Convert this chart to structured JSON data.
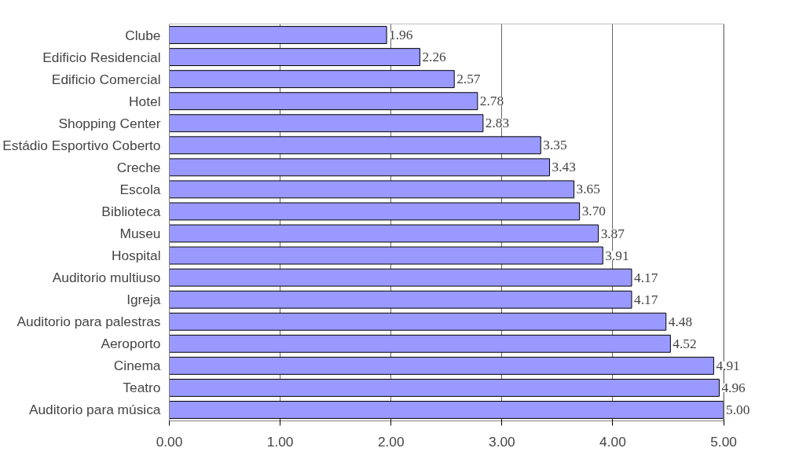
{
  "chart_data": {
    "type": "bar",
    "orientation": "horizontal",
    "categories": [
      "Clube",
      "Edificio Residencial",
      "Edificio Comercial",
      "Hotel",
      "Shopping Center",
      "Estádio Esportivo Coberto",
      "Creche",
      "Escola",
      "Biblioteca",
      "Museu",
      "Hospital",
      "Auditorio multiuso",
      "Igreja",
      "Auditorio para palestras",
      "Aeroporto",
      "Cinema",
      "Teatro",
      "Auditorio para música"
    ],
    "values": [
      1.96,
      2.26,
      2.57,
      2.78,
      2.83,
      3.35,
      3.43,
      3.65,
      3.7,
      3.87,
      3.91,
      4.17,
      4.17,
      4.48,
      4.52,
      4.91,
      4.96,
      5.0
    ],
    "value_labels": [
      "1.96",
      "2.26",
      "2.57",
      "2.78",
      "2.83",
      "3.35",
      "3.43",
      "3.65",
      "3.70",
      "3.87",
      "3.91",
      "4.17",
      "4.17",
      "4.48",
      "4.52",
      "4.91",
      "4.96",
      "5.00"
    ],
    "color": "#9999ff",
    "xlim": [
      0,
      5
    ],
    "xticks": [
      {
        "value": 0,
        "label": "0.00"
      },
      {
        "value": 1,
        "label": "1.00"
      },
      {
        "value": 2,
        "label": "2.00"
      },
      {
        "value": 3,
        "label": "3.00"
      },
      {
        "value": 4,
        "label": "4.00"
      },
      {
        "value": 5,
        "label": "5.00"
      }
    ],
    "grid": "x"
  }
}
